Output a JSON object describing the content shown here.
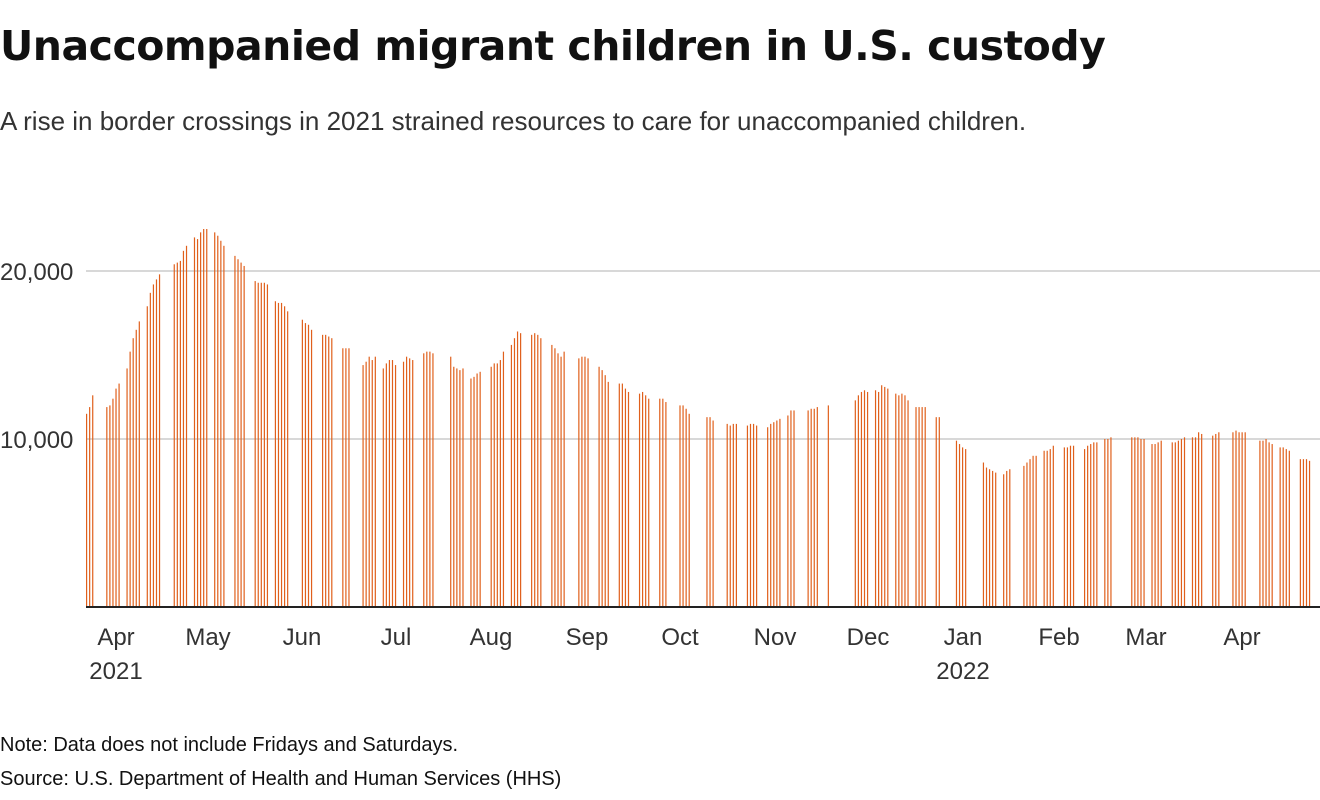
{
  "title": "Unaccompanied migrant children in U.S. custody",
  "subtitle": "A rise in border crossings in 2021 strained resources to care for unaccompanied children.",
  "note": "Note: Data does not include Fridays and Saturdays.",
  "source": "Source: U.S. Department of Health and Human Services (HHS)",
  "colors": {
    "bar": "#e0601c",
    "grid": "#cccccc",
    "axis": "#222222",
    "text": "#333333"
  },
  "chart_data": {
    "type": "bar",
    "title": "Unaccompanied migrant children in U.S. custody",
    "xlabel": "",
    "ylabel": "",
    "ylim": [
      0,
      22500
    ],
    "grid": true,
    "y_ticks": [
      {
        "value": 10000,
        "label": "10,000"
      },
      {
        "value": 20000,
        "label": "20,000"
      }
    ],
    "x_ticks": [
      {
        "label": "Apr",
        "sublabel": "2021",
        "week": 1
      },
      {
        "label": "May",
        "sublabel": "",
        "week": 18
      },
      {
        "label": "Jun",
        "sublabel": "",
        "week": 32
      },
      {
        "label": "Jul",
        "sublabel": "",
        "week": 46
      },
      {
        "label": "Aug",
        "sublabel": "",
        "week": 60
      },
      {
        "label": "Sep",
        "sublabel": "",
        "week": 74
      },
      {
        "label": "Oct",
        "sublabel": "",
        "week": 88
      },
      {
        "label": "Nov",
        "sublabel": "",
        "week": 102
      },
      {
        "label": "Dec",
        "sublabel": "",
        "week": 116
      },
      {
        "label": "Jan",
        "sublabel": "2022",
        "week": 130
      },
      {
        "label": "Feb",
        "sublabel": "",
        "week": 144
      },
      {
        "label": "Mar",
        "sublabel": "",
        "week": 158
      },
      {
        "label": "Apr",
        "sublabel": "",
        "week": 172
      }
    ],
    "week_count": 183,
    "weeks": [
      [
        11500,
        11900,
        12600,
        null,
        null
      ],
      [
        11900,
        12000,
        12400,
        13000,
        13300
      ],
      [
        14200,
        15200,
        16000,
        16500,
        17000
      ],
      [
        17900,
        18700,
        19200,
        19500,
        19800
      ],
      [
        20400,
        20500,
        20600,
        21200,
        21500
      ],
      [
        22000,
        21900,
        22300,
        22500,
        22500
      ],
      [
        22300,
        22100,
        21800,
        21500,
        null
      ],
      [
        20900,
        20700,
        20500,
        20300,
        null
      ],
      [
        19400,
        19300,
        19300,
        19300,
        19200
      ],
      [
        18200,
        18100,
        18100,
        17900,
        17600
      ],
      [
        17100,
        16900,
        16800,
        16500,
        null
      ],
      [
        16200,
        16200,
        16100,
        16000,
        null
      ],
      [
        15400,
        15400,
        15400,
        null,
        null
      ],
      [
        14400,
        14600,
        14900,
        14700,
        14900
      ],
      [
        14200,
        14500,
        14700,
        14700,
        14400
      ],
      [
        14600,
        14900,
        14800,
        14700,
        null
      ],
      [
        15100,
        15200,
        15200,
        15100,
        null
      ],
      [
        14900,
        14300,
        14200,
        14100,
        14200
      ],
      [
        13600,
        13700,
        13900,
        14000,
        null
      ],
      [
        14300,
        14500,
        14500,
        14700,
        15200
      ],
      [
        15600,
        16000,
        16400,
        16300,
        null
      ],
      [
        16200,
        16300,
        16200,
        16000,
        null
      ],
      [
        15600,
        15400,
        15100,
        14900,
        15200
      ],
      [
        14800,
        14900,
        14900,
        14800,
        null
      ],
      [
        14300,
        14100,
        13800,
        13400,
        null
      ],
      [
        13300,
        13300,
        13000,
        12800,
        null
      ],
      [
        12700,
        12800,
        12600,
        12400,
        null
      ],
      [
        12400,
        12400,
        12200,
        null,
        null
      ],
      [
        12000,
        12000,
        11800,
        11500,
        null
      ],
      [
        11300,
        11300,
        11100,
        null,
        null
      ],
      [
        10900,
        10800,
        10900,
        10900,
        null
      ],
      [
        10800,
        10900,
        10900,
        10800,
        null
      ],
      [
        10700,
        10900,
        11000,
        11100,
        11200
      ],
      [
        11400,
        11700,
        11700,
        null,
        null
      ],
      [
        11700,
        11800,
        11800,
        11900,
        null
      ],
      [
        12000,
        null,
        null,
        null,
        null
      ],
      [
        12300,
        12600,
        12800,
        12900,
        12800
      ],
      [
        12900,
        12800,
        13200,
        13100,
        13000
      ],
      [
        12700,
        12600,
        12700,
        12600,
        12300
      ],
      [
        11900,
        11900,
        11900,
        11900,
        null
      ],
      [
        11300,
        11300,
        null,
        null,
        null
      ],
      [
        9900,
        9700,
        9500,
        9400,
        null
      ],
      [
        8600,
        8300,
        8200,
        8100,
        8000
      ],
      [
        7900,
        8100,
        8200,
        null,
        null
      ],
      [
        8400,
        8600,
        8800,
        9000,
        9000
      ],
      [
        9300,
        9300,
        9400,
        9600,
        null
      ],
      [
        9500,
        9500,
        9600,
        9600,
        null
      ],
      [
        9400,
        9600,
        9700,
        9800,
        9800
      ],
      [
        10000,
        10000,
        10100,
        null,
        null
      ],
      [
        10100,
        10100,
        10100,
        10000,
        10000
      ],
      [
        9700,
        9700,
        9800,
        9900,
        null
      ],
      [
        9800,
        9800,
        9900,
        10000,
        10100
      ],
      [
        10100,
        10100,
        10400,
        10300,
        null
      ],
      [
        10200,
        10300,
        10400,
        null,
        null
      ],
      [
        10400,
        10500,
        10400,
        10400,
        10400
      ],
      [
        9900,
        9900,
        10000,
        9800,
        9700
      ],
      [
        9500,
        9500,
        9400,
        9300,
        null
      ],
      [
        8800,
        8800,
        8800,
        8700,
        null
      ]
    ]
  }
}
